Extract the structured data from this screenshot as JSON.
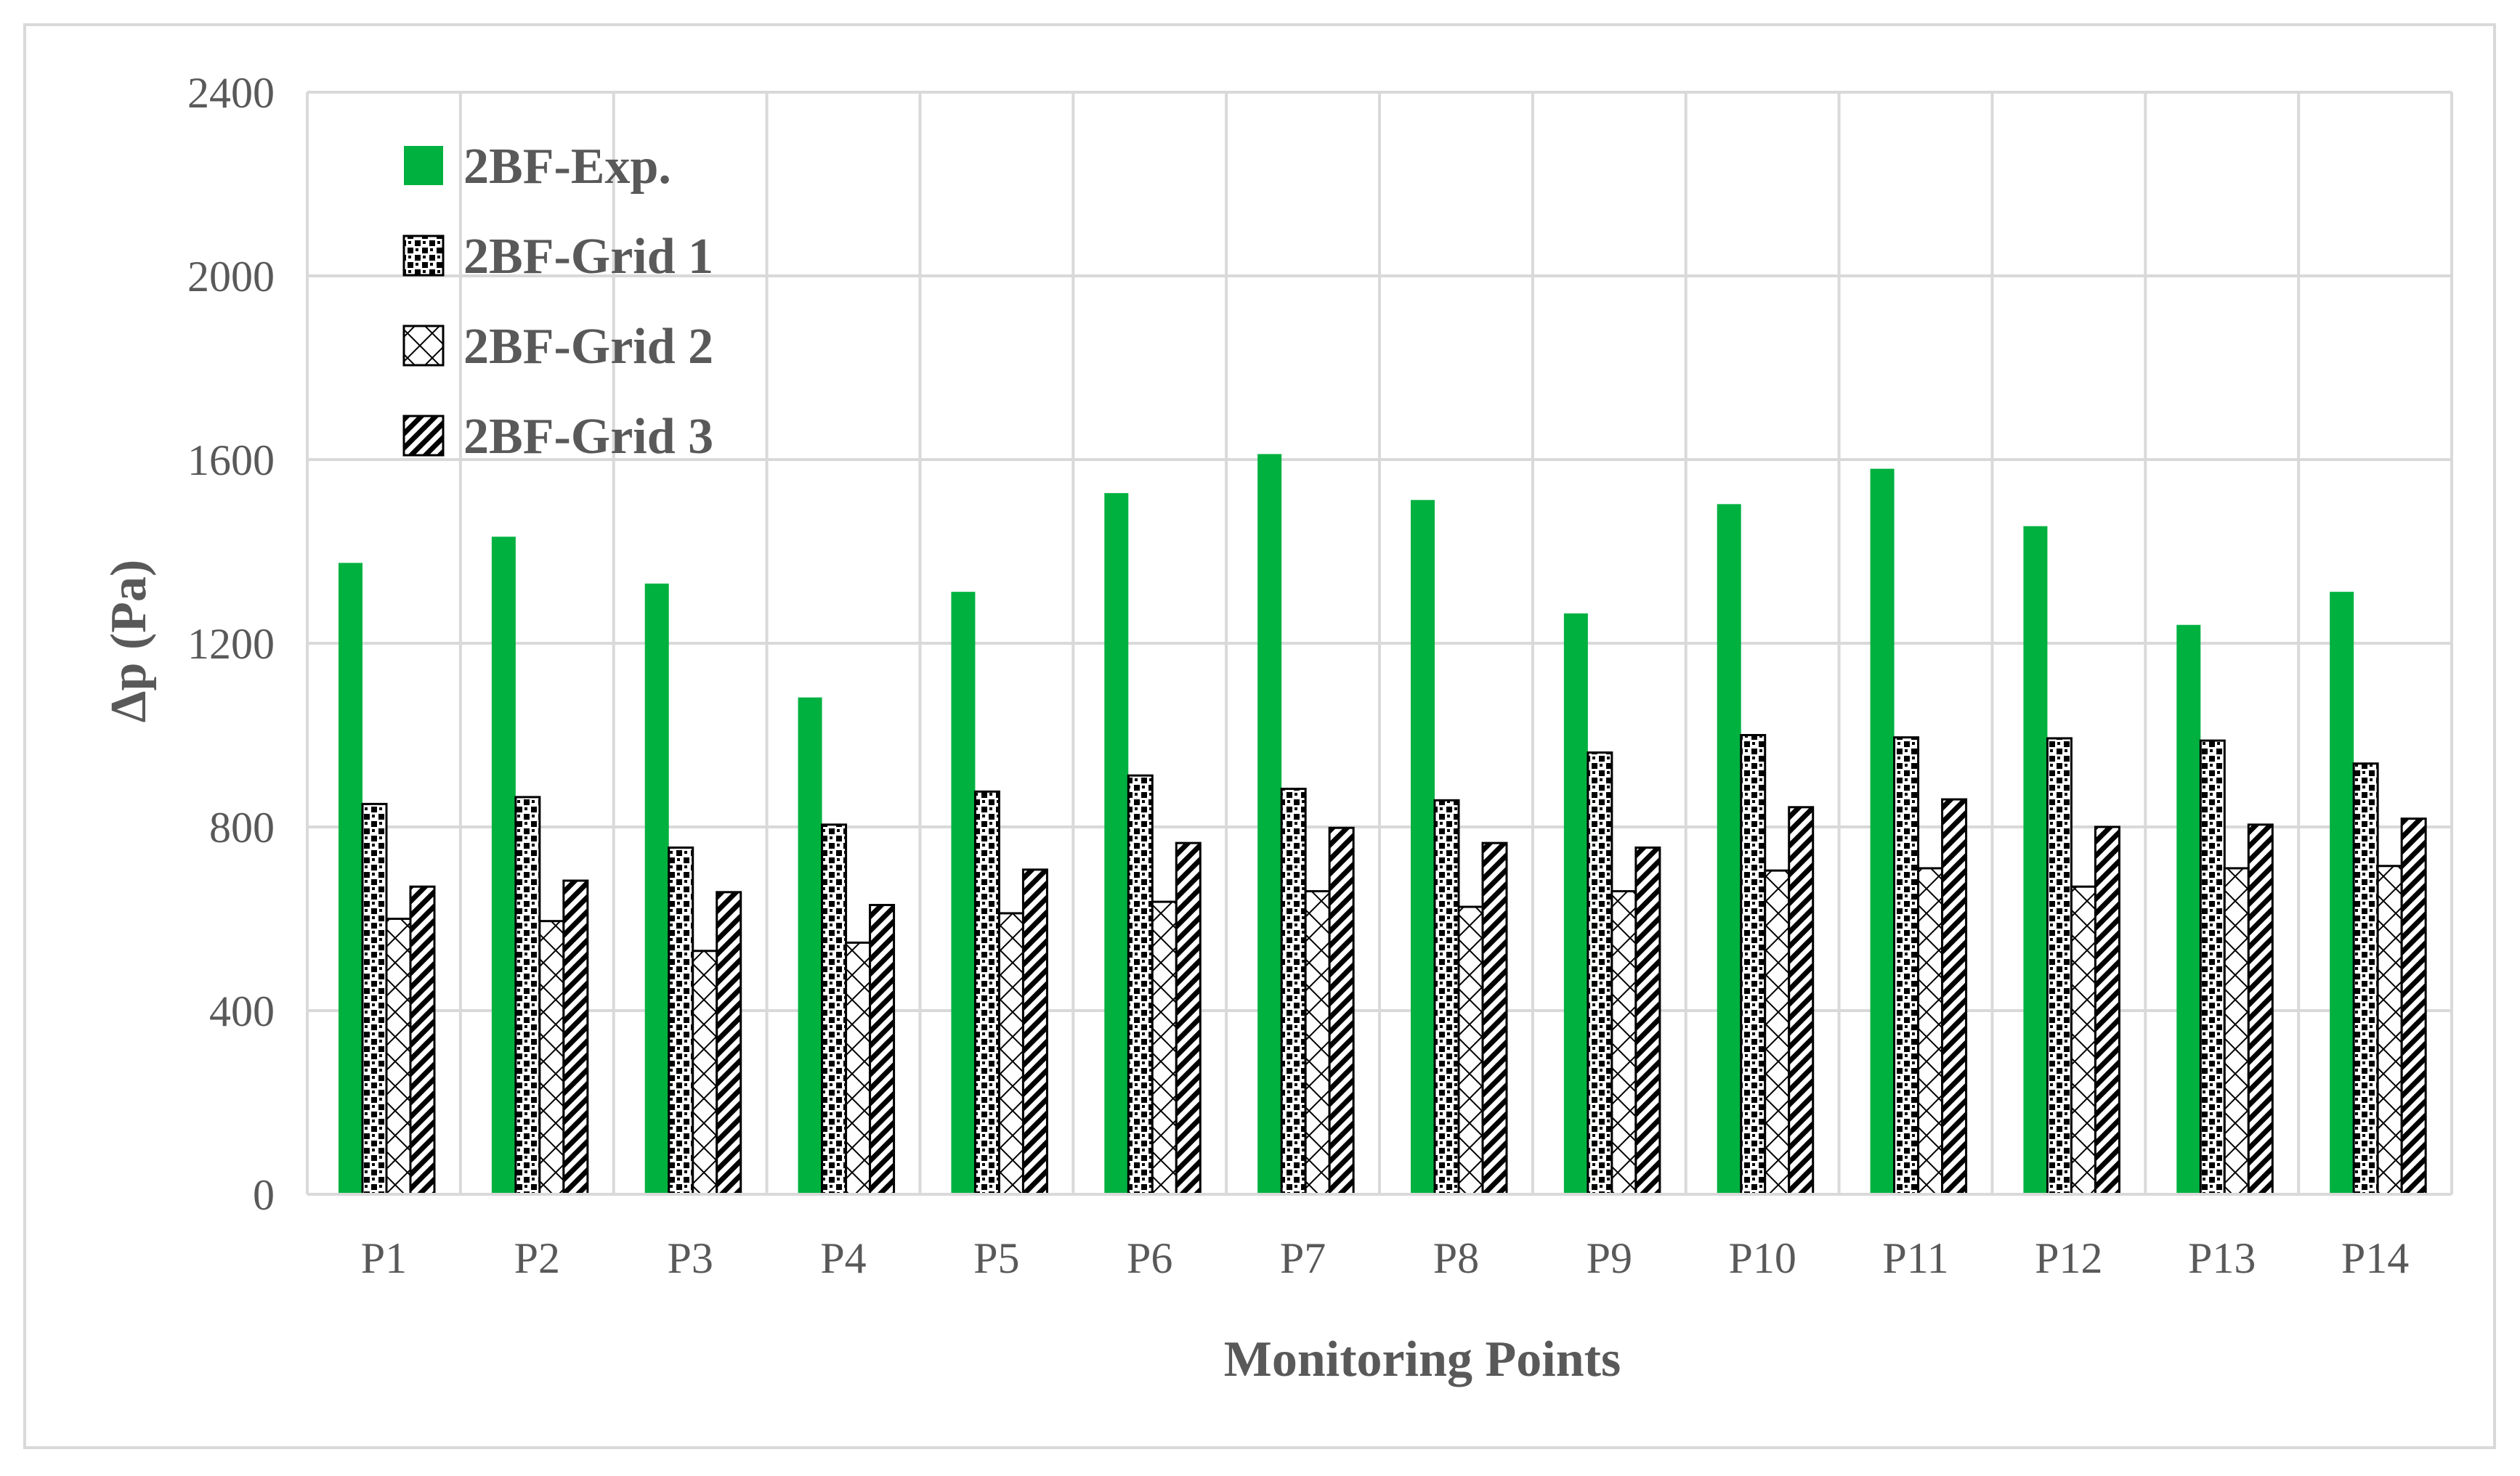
{
  "chart_data": {
    "type": "bar",
    "xlabel": "Monitoring Points",
    "ylabel": "Δp (Pa)",
    "ylim": [
      0,
      2400
    ],
    "yticks": [
      0,
      400,
      800,
      1200,
      1600,
      2000,
      2400
    ],
    "grid": true,
    "legend_position": "top-left",
    "categories": [
      "P1",
      "P2",
      "P3",
      "P4",
      "P5",
      "P6",
      "P7",
      "P8",
      "P9",
      "P10",
      "P11",
      "P12",
      "P13",
      "P14"
    ],
    "series": [
      {
        "name": "2BF-Exp.",
        "pattern": "solid",
        "color": "#00b140",
        "values": [
          1375,
          1432,
          1330,
          1082,
          1312,
          1527,
          1612,
          1512,
          1265,
          1503,
          1580,
          1455,
          1240,
          1312
        ]
      },
      {
        "name": "2BF-Grid 1",
        "pattern": "dots",
        "color": "#000000",
        "values": [
          850,
          865,
          755,
          805,
          877,
          912,
          883,
          858,
          962,
          1000,
          995,
          993,
          988,
          938
        ]
      },
      {
        "name": "2BF-Grid 2",
        "pattern": "crosshatch",
        "color": "#000000",
        "values": [
          600,
          595,
          530,
          548,
          612,
          637,
          660,
          626,
          660,
          705,
          710,
          670,
          710,
          715
        ]
      },
      {
        "name": "2BF-Grid 3",
        "pattern": "diagonal",
        "color": "#000000",
        "values": [
          670,
          683,
          658,
          630,
          707,
          765,
          798,
          765,
          755,
          843,
          860,
          800,
          805,
          818
        ]
      }
    ]
  }
}
